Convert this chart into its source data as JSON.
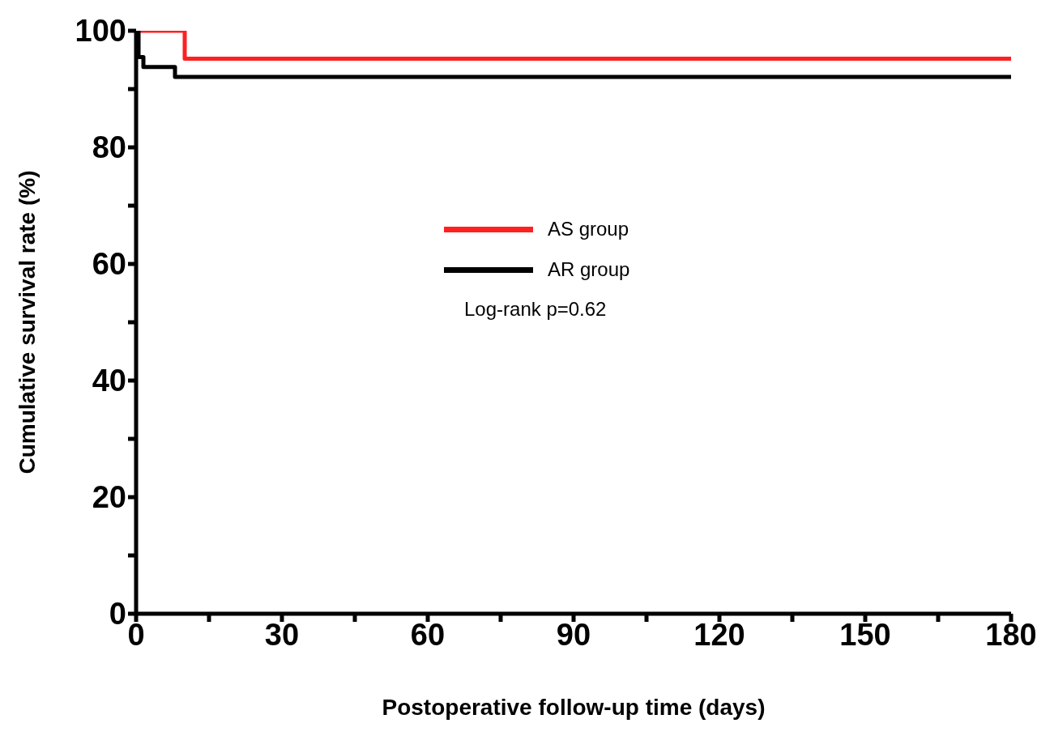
{
  "chart_data": {
    "type": "step",
    "xlabel": "Postoperative follow-up time (days)",
    "ylabel": "Cumulative survival rate (%)",
    "xlim": [
      0,
      180
    ],
    "ylim": [
      0,
      100
    ],
    "xticks": [
      0,
      {
        "value": 15,
        "label": null
      },
      30,
      {
        "value": 45,
        "label": null
      },
      60,
      {
        "value": 75,
        "label": null
      },
      90,
      {
        "value": 105,
        "label": null
      },
      120,
      {
        "value": 135,
        "label": null
      },
      150,
      {
        "value": 165,
        "label": null
      },
      180
    ],
    "yticks": [
      0,
      {
        "value": 10,
        "label": null
      },
      20,
      {
        "value": 30,
        "label": null
      },
      40,
      {
        "value": 50,
        "label": null
      },
      60,
      {
        "value": 70,
        "label": null
      },
      80,
      {
        "value": 90,
        "label": null
      },
      100
    ],
    "series": [
      {
        "name": "AS group",
        "color": "#ff2020",
        "x": [
          0,
          10,
          180
        ],
        "values": [
          100,
          95.2,
          95.2
        ]
      },
      {
        "name": "AR group",
        "color": "#000000",
        "x": [
          0,
          0.5,
          1.5,
          8,
          180
        ],
        "values": [
          100,
          95.5,
          93.8,
          92.1,
          92.1
        ]
      }
    ],
    "legend": "center",
    "marker": "none",
    "line_style": "solid",
    "annotations": [
      "Log-rank p=0.62"
    ]
  }
}
